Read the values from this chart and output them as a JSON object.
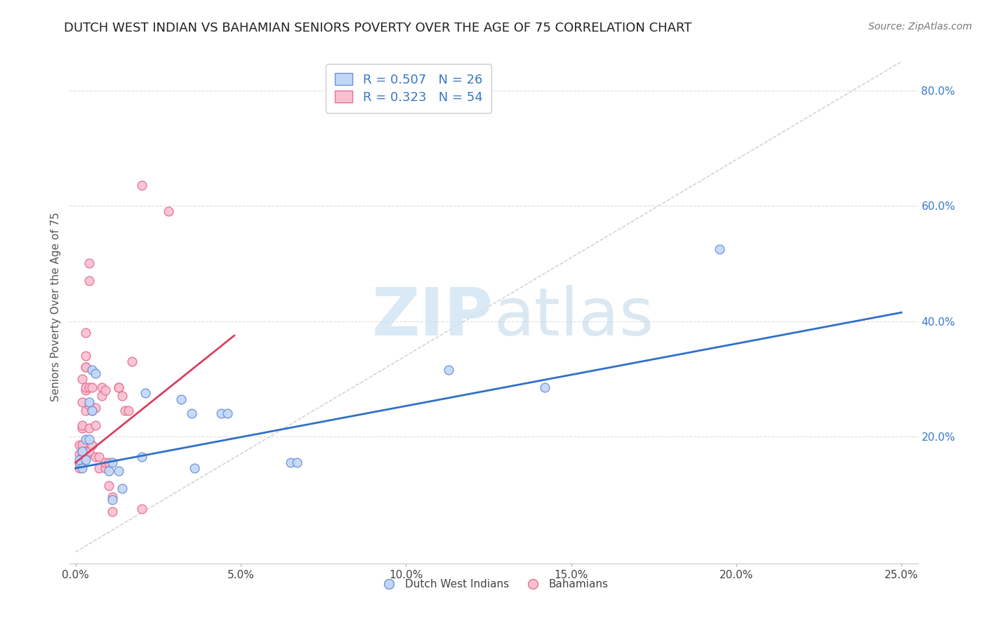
{
  "title": "DUTCH WEST INDIAN VS BAHAMIAN SENIORS POVERTY OVER THE AGE OF 75 CORRELATION CHART",
  "source": "Source: ZipAtlas.com",
  "ylabel_label": "Seniors Poverty Over the Age of 75",
  "x_tick_labels": [
    "0.0%",
    "",
    "5.0%",
    "",
    "10.0%",
    "",
    "15.0%",
    "",
    "20.0%",
    "",
    "25.0%"
  ],
  "x_tick_vals": [
    0.0,
    0.025,
    0.05,
    0.075,
    0.1,
    0.125,
    0.15,
    0.175,
    0.2,
    0.225,
    0.25
  ],
  "x_tick_display": [
    "0.0%",
    "5.0%",
    "10.0%",
    "15.0%",
    "20.0%",
    "25.0%"
  ],
  "x_tick_display_vals": [
    0.0,
    0.05,
    0.1,
    0.15,
    0.2,
    0.25
  ],
  "y_tick_labels": [
    "20.0%",
    "40.0%",
    "60.0%",
    "80.0%"
  ],
  "y_tick_vals": [
    0.2,
    0.4,
    0.6,
    0.8
  ],
  "xlim": [
    -0.002,
    0.255
  ],
  "ylim": [
    -0.02,
    0.87
  ],
  "blue_scatter": [
    [
      0.001,
      0.155
    ],
    [
      0.001,
      0.16
    ],
    [
      0.002,
      0.175
    ],
    [
      0.002,
      0.145
    ],
    [
      0.003,
      0.195
    ],
    [
      0.003,
      0.16
    ],
    [
      0.004,
      0.26
    ],
    [
      0.004,
      0.195
    ],
    [
      0.005,
      0.315
    ],
    [
      0.005,
      0.245
    ],
    [
      0.006,
      0.31
    ],
    [
      0.01,
      0.14
    ],
    [
      0.011,
      0.155
    ],
    [
      0.011,
      0.09
    ],
    [
      0.013,
      0.14
    ],
    [
      0.014,
      0.11
    ],
    [
      0.02,
      0.165
    ],
    [
      0.021,
      0.275
    ],
    [
      0.032,
      0.265
    ],
    [
      0.035,
      0.24
    ],
    [
      0.036,
      0.145
    ],
    [
      0.044,
      0.24
    ],
    [
      0.046,
      0.24
    ],
    [
      0.065,
      0.155
    ],
    [
      0.067,
      0.155
    ],
    [
      0.113,
      0.315
    ],
    [
      0.142,
      0.285
    ],
    [
      0.195,
      0.525
    ]
  ],
  "pink_scatter": [
    [
      0.001,
      0.155
    ],
    [
      0.001,
      0.17
    ],
    [
      0.001,
      0.185
    ],
    [
      0.001,
      0.145
    ],
    [
      0.002,
      0.175
    ],
    [
      0.002,
      0.165
    ],
    [
      0.002,
      0.215
    ],
    [
      0.002,
      0.22
    ],
    [
      0.002,
      0.165
    ],
    [
      0.002,
      0.185
    ],
    [
      0.002,
      0.26
    ],
    [
      0.002,
      0.3
    ],
    [
      0.003,
      0.34
    ],
    [
      0.003,
      0.38
    ],
    [
      0.003,
      0.175
    ],
    [
      0.003,
      0.28
    ],
    [
      0.003,
      0.285
    ],
    [
      0.003,
      0.32
    ],
    [
      0.003,
      0.165
    ],
    [
      0.003,
      0.175
    ],
    [
      0.003,
      0.245
    ],
    [
      0.003,
      0.32
    ],
    [
      0.004,
      0.5
    ],
    [
      0.004,
      0.47
    ],
    [
      0.004,
      0.175
    ],
    [
      0.004,
      0.215
    ],
    [
      0.004,
      0.255
    ],
    [
      0.004,
      0.285
    ],
    [
      0.005,
      0.285
    ],
    [
      0.005,
      0.185
    ],
    [
      0.005,
      0.245
    ],
    [
      0.006,
      0.22
    ],
    [
      0.006,
      0.25
    ],
    [
      0.006,
      0.165
    ],
    [
      0.007,
      0.145
    ],
    [
      0.007,
      0.165
    ],
    [
      0.008,
      0.285
    ],
    [
      0.008,
      0.27
    ],
    [
      0.009,
      0.145
    ],
    [
      0.009,
      0.155
    ],
    [
      0.009,
      0.28
    ],
    [
      0.01,
      0.155
    ],
    [
      0.01,
      0.115
    ],
    [
      0.011,
      0.07
    ],
    [
      0.011,
      0.095
    ],
    [
      0.013,
      0.285
    ],
    [
      0.013,
      0.285
    ],
    [
      0.014,
      0.27
    ],
    [
      0.015,
      0.245
    ],
    [
      0.016,
      0.245
    ],
    [
      0.017,
      0.33
    ],
    [
      0.02,
      0.075
    ],
    [
      0.02,
      0.635
    ],
    [
      0.028,
      0.59
    ]
  ],
  "blue_line_x": [
    0.0,
    0.25
  ],
  "blue_line_y": [
    0.145,
    0.415
  ],
  "pink_line_x": [
    0.0,
    0.048
  ],
  "pink_line_y": [
    0.155,
    0.375
  ],
  "diagonal_line_x": [
    0.0,
    0.25
  ],
  "diagonal_line_y": [
    0.0,
    0.85
  ],
  "scatter_size": 85,
  "blue_face_color": "#c0d8f8",
  "blue_edge_color": "#7090d8",
  "pink_face_color": "#f8c0d0",
  "pink_edge_color": "#e87090",
  "blue_line_color": "#3070c8",
  "pink_line_color": "#d84060",
  "diagonal_color": "#cccccc",
  "legend_text_color": "#3878c8",
  "right_tick_color": "#3878c8",
  "background_color": "#ffffff",
  "grid_color": "#dddddd",
  "title_fontsize": 13,
  "axis_fontsize": 11,
  "tick_fontsize": 11,
  "source_fontsize": 10
}
